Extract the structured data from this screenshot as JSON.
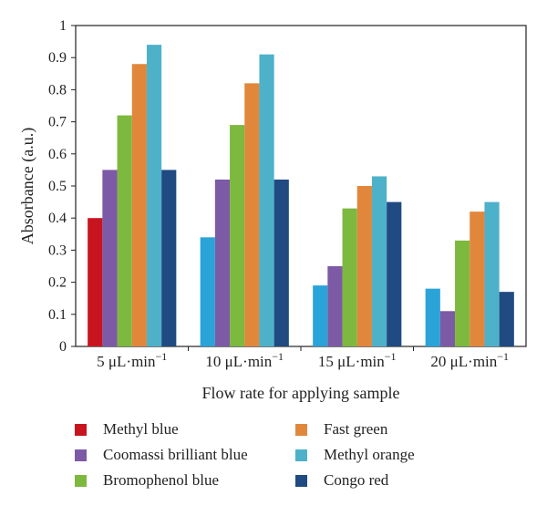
{
  "chart_data": {
    "type": "bar",
    "title": "",
    "xlabel": "Flow rate for applying sample",
    "ylabel": "Absorbance (a.u.)",
    "ylim": [
      0,
      1
    ],
    "yticks": [
      "0",
      "0.1",
      "0.2",
      "0.3",
      "0.4",
      "0.5",
      "0.6",
      "0.7",
      "0.8",
      "0.9",
      "1"
    ],
    "grid": false,
    "legend_position": "bottom",
    "categories": [
      {
        "num": "5",
        "unit": "μL·min",
        "exp": "−1"
      },
      {
        "num": "10",
        "unit": "μL·min",
        "exp": "−1"
      },
      {
        "num": "15",
        "unit": "μL·min",
        "exp": "−1"
      },
      {
        "num": "20",
        "unit": "μL·min",
        "exp": "−1"
      }
    ],
    "series": [
      {
        "name": "Methyl blue",
        "colors": [
          "#c8141e",
          "#2aa3d9",
          "#2aa3d9",
          "#2aa3d9"
        ],
        "values": [
          0.4,
          0.34,
          0.19,
          0.18
        ]
      },
      {
        "name": "Coomassi brilliant blue",
        "color": "#7d5aa6",
        "values": [
          0.55,
          0.52,
          0.25,
          0.11
        ]
      },
      {
        "name": "Bromophenol blue",
        "color": "#7db83f",
        "values": [
          0.72,
          0.69,
          0.43,
          0.33
        ]
      },
      {
        "name": "Fast green",
        "color": "#e1873b",
        "values": [
          0.88,
          0.82,
          0.5,
          0.42
        ]
      },
      {
        "name": "Methyl orange",
        "color": "#4db1ca",
        "values": [
          0.94,
          0.91,
          0.53,
          0.45
        ]
      },
      {
        "name": "Congo red",
        "color": "#1f4a82",
        "values": [
          0.55,
          0.52,
          0.45,
          0.17
        ]
      }
    ]
  }
}
